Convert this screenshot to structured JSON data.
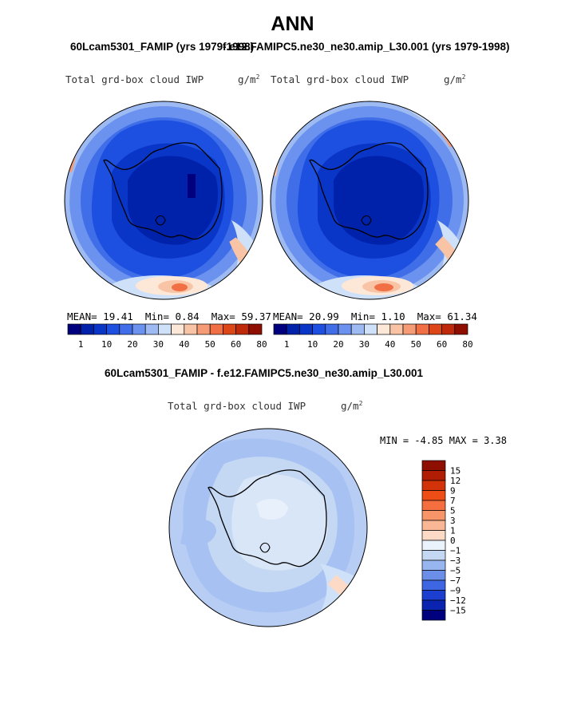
{
  "header": {
    "title": "ANN",
    "left_case": "60Lcam5301_FAMIP (yrs 1979-1998)",
    "right_case": "f.e12.FAMIPC5.ne30_ne30.amip_L30.001 (yrs 1979-1998)",
    "diff_title": "60Lcam5301_FAMIP - f.e12.FAMIPC5.ne30_ne30.amip_L30.001"
  },
  "panels": {
    "left": {
      "variable": "Total grd-box cloud IWP",
      "units": "g/m",
      "units_exp": "2",
      "mean_label": "MEAN=",
      "mean": "19.41",
      "min_label": "Min=",
      "min": "0.84",
      "max_label": "Max=",
      "max": "59.37"
    },
    "right": {
      "variable": "Total grd-box cloud IWP",
      "units": "g/m",
      "units_exp": "2",
      "mean_label": "MEAN=",
      "mean": "20.99",
      "min_label": "Min=",
      "min": "1.10",
      "max_label": "Max=",
      "max": "61.34"
    },
    "diff": {
      "variable": "Total grd-box cloud IWP",
      "units": "g/m",
      "units_exp": "2",
      "min_label": "MIN =",
      "min": "-4.85",
      "max_label": "MAX =",
      "max": "3.38"
    }
  },
  "colorbars": {
    "abs": {
      "labels": [
        "1",
        "10",
        "20",
        "30",
        "40",
        "50",
        "60",
        "80"
      ],
      "colors": [
        "#00007f",
        "#0022aa",
        "#0a36c8",
        "#1d4fe0",
        "#3f6ee8",
        "#6b92ee",
        "#9dbaf2",
        "#cfe1f8",
        "#fde8d8",
        "#f9c4a5",
        "#f59c76",
        "#f06f44",
        "#dd4718",
        "#bf2a0a",
        "#8e0e00"
      ]
    },
    "diff": {
      "labels": [
        "15",
        "12",
        "9",
        "7",
        "5",
        "3",
        "1",
        "0",
        "−1",
        "−3",
        "−5",
        "−7",
        "−9",
        "−12",
        "−15"
      ],
      "colors": [
        "#8e0e00",
        "#b01c04",
        "#d33308",
        "#ef4d16",
        "#f56e3f",
        "#f79468",
        "#f9b796",
        "#fcdac6",
        "#eaf2fb",
        "#c4d8f4",
        "#97b5ef",
        "#6b8fe9",
        "#3f66e2",
        "#1c3fd0",
        "#0a24b0",
        "#00007f"
      ]
    }
  },
  "map_colors": {
    "land_outline": "#000000",
    "ocean_ring": "#5a85ea",
    "diff_base": "#b7cdf4"
  }
}
